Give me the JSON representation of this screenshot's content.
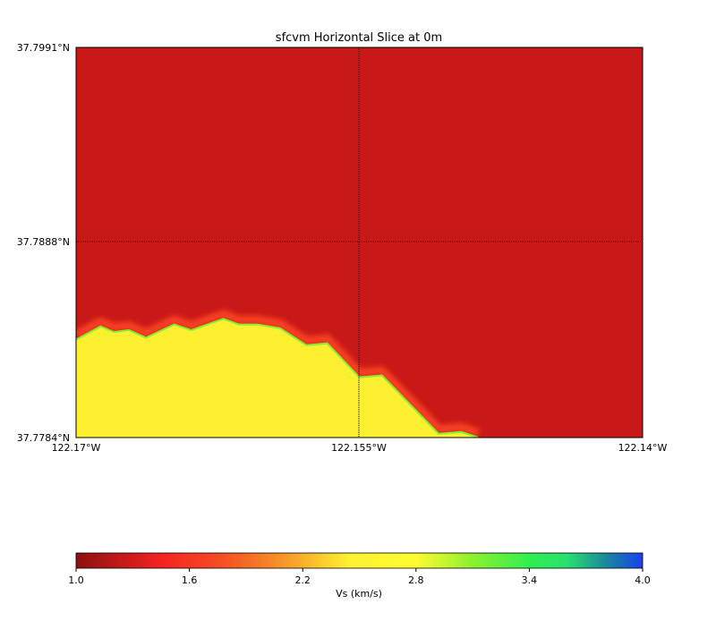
{
  "chart_data": {
    "type": "heatmap",
    "title": "sfcvm Horizontal Slice at 0m",
    "x_ticks": [
      "122.17°W",
      "122.155°W",
      "122.14°W"
    ],
    "y_ticks": [
      "37.7991°N",
      "37.7888°N",
      "37.7784°N"
    ],
    "xlim": [
      -122.17,
      -122.14
    ],
    "ylim": [
      37.7784,
      37.7991
    ],
    "grid": "dotted lines at middle ticks",
    "regions": [
      {
        "name": "upper",
        "vs": 1.1,
        "color": "#c81818"
      },
      {
        "name": "lower",
        "vs": 2.7,
        "color": "#fcf030"
      }
    ],
    "boundary_lonlat": [
      [
        -122.17,
        37.7836
      ],
      [
        -122.1687,
        37.7843
      ],
      [
        -122.168,
        37.784
      ],
      [
        -122.1672,
        37.7841
      ],
      [
        -122.1663,
        37.7837
      ],
      [
        -122.1648,
        37.7844
      ],
      [
        -122.1639,
        37.7841
      ],
      [
        -122.1622,
        37.7847
      ],
      [
        -122.1614,
        37.7844
      ],
      [
        -122.1604,
        37.7844
      ],
      [
        -122.1592,
        37.7842
      ],
      [
        -122.1578,
        37.7833
      ],
      [
        -122.1567,
        37.7834
      ],
      [
        -122.155,
        37.7816
      ],
      [
        -122.1538,
        37.7817
      ],
      [
        -122.1508,
        37.7786
      ],
      [
        -122.1496,
        37.7787
      ],
      [
        -122.1487,
        37.7784
      ]
    ],
    "colorbar": {
      "label": "Vs (km/s)",
      "range": [
        1.0,
        4.0
      ],
      "ticks": [
        "1.0",
        "1.6",
        "2.2",
        "2.8",
        "3.4",
        "4.0"
      ],
      "stops": [
        {
          "v": 1.0,
          "c": "#8c1010"
        },
        {
          "v": 1.45,
          "c": "#f52222"
        },
        {
          "v": 1.75,
          "c": "#f64a24"
        },
        {
          "v": 2.05,
          "c": "#f68a26"
        },
        {
          "v": 2.45,
          "c": "#fcf232"
        },
        {
          "v": 2.8,
          "c": "#fcfc30"
        },
        {
          "v": 3.1,
          "c": "#8cf030"
        },
        {
          "v": 3.4,
          "c": "#30f050"
        },
        {
          "v": 3.6,
          "c": "#28e070"
        },
        {
          "v": 3.8,
          "c": "#1a8a9a"
        },
        {
          "v": 4.0,
          "c": "#1a40f0"
        }
      ]
    }
  }
}
